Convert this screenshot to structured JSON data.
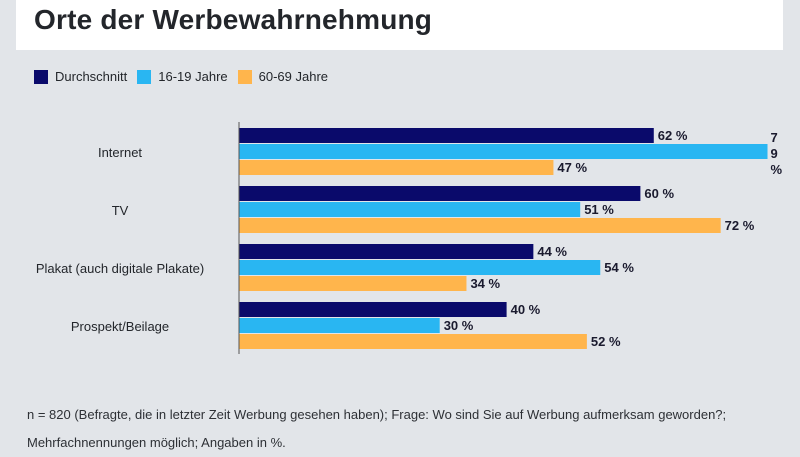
{
  "chart_data": {
    "type": "bar",
    "orientation": "horizontal",
    "title": "Orte der Werbewahrnehmung",
    "categories": [
      "Internet",
      "TV",
      "Plakat (auch digitale Plakate)",
      "Prospekt/Beilage"
    ],
    "series": [
      {
        "name": "Durchschnitt",
        "color": "#0a0a6b",
        "values": [
          62,
          60,
          44,
          40
        ]
      },
      {
        "name": "16-19 Jahre",
        "color": "#29b6f2",
        "values": [
          79,
          51,
          54,
          30
        ]
      },
      {
        "name": "60-69 Jahre",
        "color": "#ffb54c",
        "values": [
          47,
          72,
          34,
          52
        ]
      }
    ],
    "value_suffix": " %",
    "xlim": [
      0,
      80
    ],
    "grid": false,
    "legend_position": "top-left"
  },
  "footer": {
    "note": "n = 820 (Befragte, die in letzter Zeit Werbung gesehen haben); Frage: Wo sind Sie auf Werbung aufmerksam geworden?; Mehrfachnennungen möglich; Angaben in %."
  }
}
